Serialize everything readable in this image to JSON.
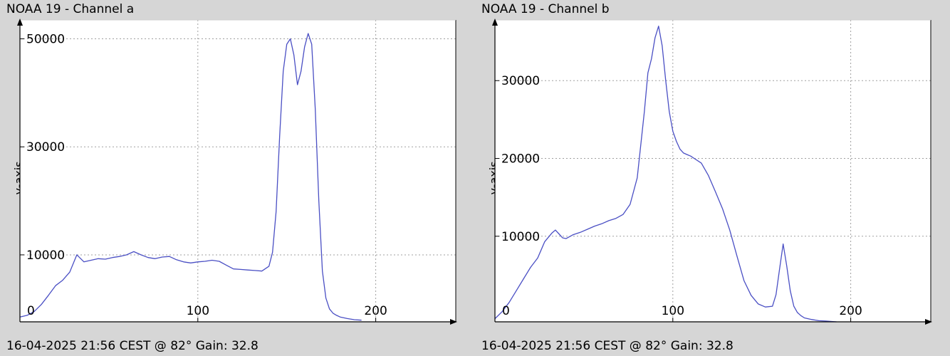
{
  "chart_data": [
    {
      "type": "line",
      "title": "NOAA 19 - Channel a",
      "xlabel": "",
      "ylabel": "y-axis",
      "footer": "16-04-2025 21:56 CEST @ 82° Gain: 32.8",
      "xlim": [
        0,
        245
      ],
      "ylim": [
        -2400,
        53500
      ],
      "xticks": [
        0,
        100,
        200
      ],
      "yticks": [
        10000,
        30000,
        50000
      ],
      "grid": true,
      "series": [
        {
          "color": "#4a4fc4",
          "x": [
            0,
            4,
            8,
            12,
            16,
            20,
            24,
            28,
            32,
            36,
            40,
            44,
            48,
            52,
            56,
            60,
            64,
            68,
            72,
            76,
            80,
            84,
            88,
            92,
            96,
            100,
            104,
            108,
            112,
            116,
            120,
            124,
            128,
            132,
            136,
            140,
            142,
            144,
            146,
            148,
            150,
            152,
            154,
            156,
            158,
            160,
            162,
            164,
            166,
            168,
            170,
            172,
            174,
            176,
            178,
            180,
            184,
            188,
            192
          ],
          "y": [
            -1500,
            -1200,
            -500,
            800,
            2500,
            4300,
            5300,
            6800,
            10000,
            8700,
            9000,
            9300,
            9200,
            9500,
            9700,
            10000,
            10600,
            10000,
            9500,
            9300,
            9600,
            9700,
            9100,
            8700,
            8500,
            8700,
            8800,
            9000,
            8800,
            8100,
            7400,
            7300,
            7200,
            7100,
            7000,
            7900,
            10500,
            18000,
            32000,
            44000,
            49000,
            50000,
            47000,
            41500,
            44000,
            48500,
            51000,
            49000,
            37000,
            20000,
            7000,
            2000,
            0,
            -800,
            -1200,
            -1500,
            -1800,
            -2000,
            -2100
          ]
        }
      ]
    },
    {
      "type": "line",
      "title": "NOAA 19 - Channel b",
      "xlabel": "",
      "ylabel": "y-axis",
      "footer": "16-04-2025 21:56 CEST @ 82° Gain: 32.8",
      "xlim": [
        0,
        245
      ],
      "ylim": [
        -1000,
        37800
      ],
      "xticks": [
        0,
        100,
        200
      ],
      "yticks": [
        10000,
        20000,
        30000
      ],
      "grid": true,
      "series": [
        {
          "color": "#4a4fc4",
          "x": [
            0,
            4,
            8,
            12,
            16,
            20,
            24,
            28,
            32,
            34,
            36,
            38,
            40,
            44,
            48,
            52,
            56,
            60,
            64,
            68,
            72,
            76,
            80,
            84,
            86,
            88,
            90,
            92,
            94,
            96,
            98,
            100,
            102,
            104,
            106,
            108,
            110,
            112,
            116,
            120,
            124,
            128,
            132,
            136,
            140,
            144,
            148,
            152,
            156,
            158,
            160,
            162,
            164,
            166,
            168,
            170,
            172,
            174,
            178,
            182,
            186,
            192
          ],
          "y": [
            -600,
            300,
            1500,
            3000,
            4500,
            6000,
            7200,
            9300,
            10400,
            10800,
            10300,
            9800,
            9700,
            10200,
            10500,
            10900,
            11300,
            11600,
            12000,
            12300,
            12800,
            14100,
            17500,
            26000,
            31000,
            32800,
            35500,
            37000,
            34500,
            30000,
            26000,
            23500,
            22200,
            21200,
            20700,
            20500,
            20300,
            20000,
            19400,
            17800,
            15700,
            13500,
            10800,
            7500,
            4300,
            2400,
            1300,
            900,
            1000,
            2500,
            5800,
            9000,
            6200,
            3000,
            1000,
            200,
            -200,
            -500,
            -700,
            -850,
            -900,
            -1000
          ]
        }
      ]
    }
  ]
}
